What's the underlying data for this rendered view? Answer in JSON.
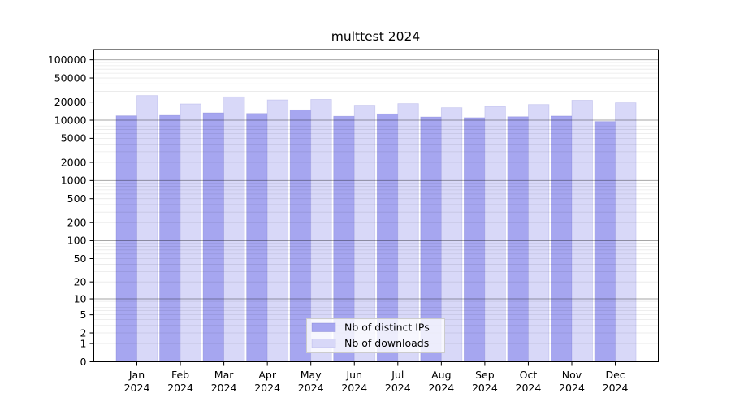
{
  "title": "multtest 2024",
  "chart_data": {
    "type": "bar",
    "title": "multtest 2024",
    "xlabel": "",
    "ylabel": "",
    "scale": "log10(1+y)",
    "ylim": [
      0,
      143000
    ],
    "grid": true,
    "legend_position": "bottom-center-inside",
    "y_ticks": [
      0,
      1,
      2,
      5,
      10,
      20,
      50,
      100,
      200,
      500,
      1000,
      2000,
      5000,
      10000,
      20000,
      50000,
      100000
    ],
    "categories": [
      "Jan 2024",
      "Feb 2024",
      "Mar 2024",
      "Apr 2024",
      "May 2024",
      "Jun 2024",
      "Jul 2024",
      "Aug 2024",
      "Sep 2024",
      "Oct 2024",
      "Nov 2024",
      "Dec 2024"
    ],
    "series": [
      {
        "name": "Nb of distinct IPs",
        "color": "#a6a6f0",
        "values": [
          11800,
          12000,
          13200,
          12900,
          14800,
          11600,
          12700,
          11300,
          11000,
          11400,
          11700,
          9500
        ]
      },
      {
        "name": "Nb of downloads",
        "color": "#d8d8f8",
        "values": [
          25600,
          18600,
          24300,
          21700,
          22100,
          17700,
          18800,
          16100,
          16900,
          18200,
          21400,
          19400
        ]
      }
    ],
    "grid_minor_color": "rgba(0,0,0,0.09)",
    "grid_major_color": "rgba(0,0,0,0.35)",
    "frame_color": "#000000"
  }
}
